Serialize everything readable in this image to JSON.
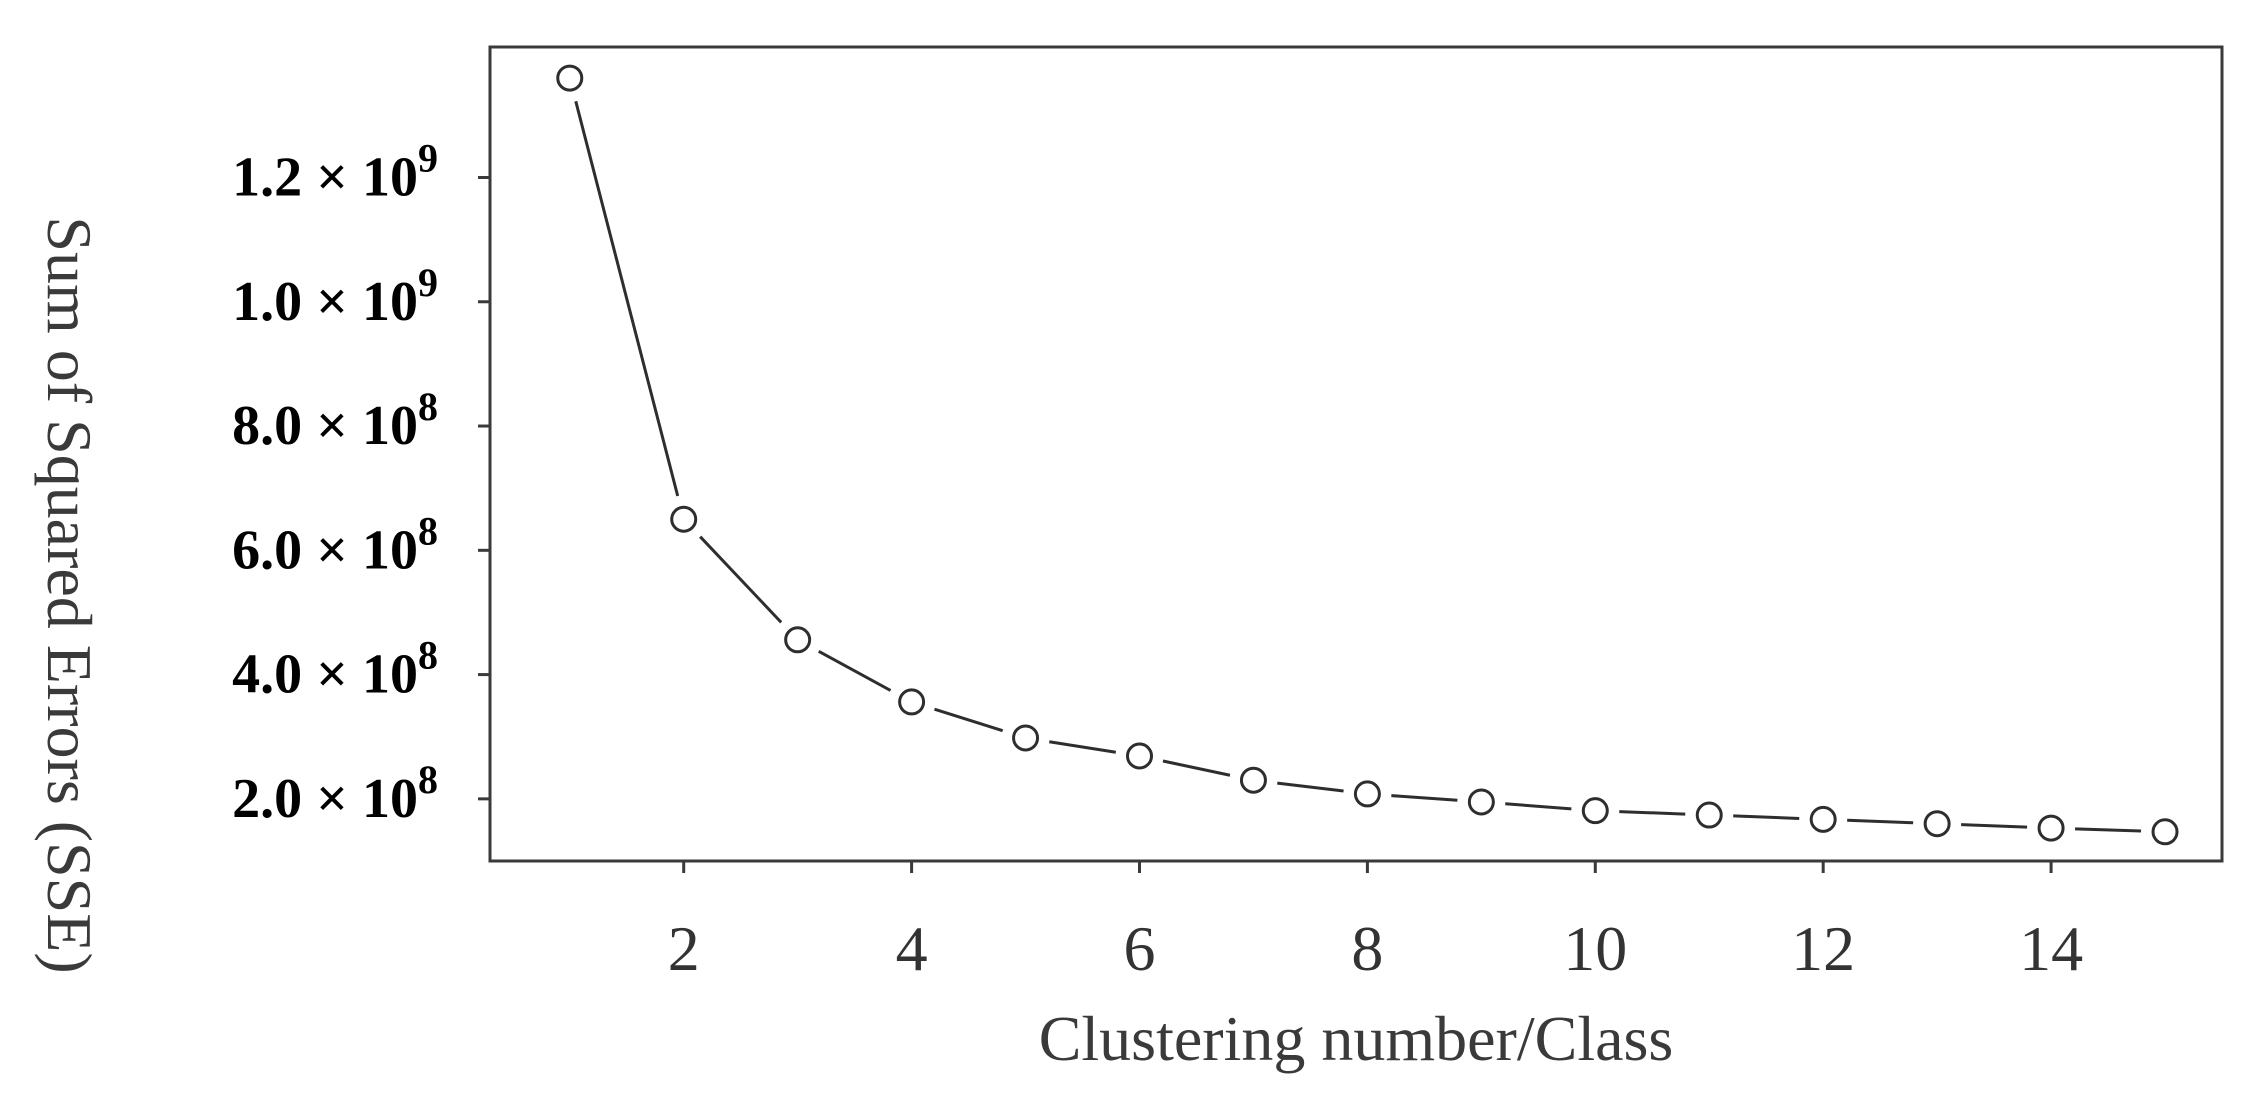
{
  "chart_data": {
    "type": "line",
    "title": "",
    "xlabel": "Clustering number/Class",
    "ylabel": "Sum of Squared Errors (SSE)",
    "xlim": [
      0.3,
      15.5
    ],
    "ylim": [
      100000000,
      1410000000
    ],
    "grid": false,
    "x_ticks": [
      {
        "value": 2,
        "label": "2"
      },
      {
        "value": 4,
        "label": "4"
      },
      {
        "value": 6,
        "label": "6"
      },
      {
        "value": 8,
        "label": "8"
      },
      {
        "value": 10,
        "label": "10"
      },
      {
        "value": 12,
        "label": "12"
      },
      {
        "value": 14,
        "label": "14"
      }
    ],
    "y_ticks": [
      {
        "value": 200000000,
        "mantissa": "2.0 × 10",
        "exponent": "8"
      },
      {
        "value": 400000000,
        "mantissa": "4.0 × 10",
        "exponent": "8"
      },
      {
        "value": 600000000,
        "mantissa": "6.0 × 10",
        "exponent": "8"
      },
      {
        "value": 800000000,
        "mantissa": "8.0 × 10",
        "exponent": "8"
      },
      {
        "value": 1000000000,
        "mantissa": "1.0 × 10",
        "exponent": "9"
      },
      {
        "value": 1200000000,
        "mantissa": "1.2 × 10",
        "exponent": "9"
      }
    ],
    "series": [
      {
        "x": [
          1,
          2,
          3,
          4,
          5,
          6,
          7,
          8,
          9,
          10,
          11,
          12,
          13,
          14,
          15
        ],
        "y": [
          1360000000,
          650000000,
          456000000,
          356000000,
          298000000,
          269000000,
          230000000,
          208000000,
          195000000,
          181000000,
          174000000,
          167000000,
          160000000,
          153000000,
          147000000
        ]
      }
    ],
    "colors": {
      "line": "#2e2e2e",
      "marker_fill": "#ffffff",
      "frame": "#3a3a3a"
    }
  }
}
